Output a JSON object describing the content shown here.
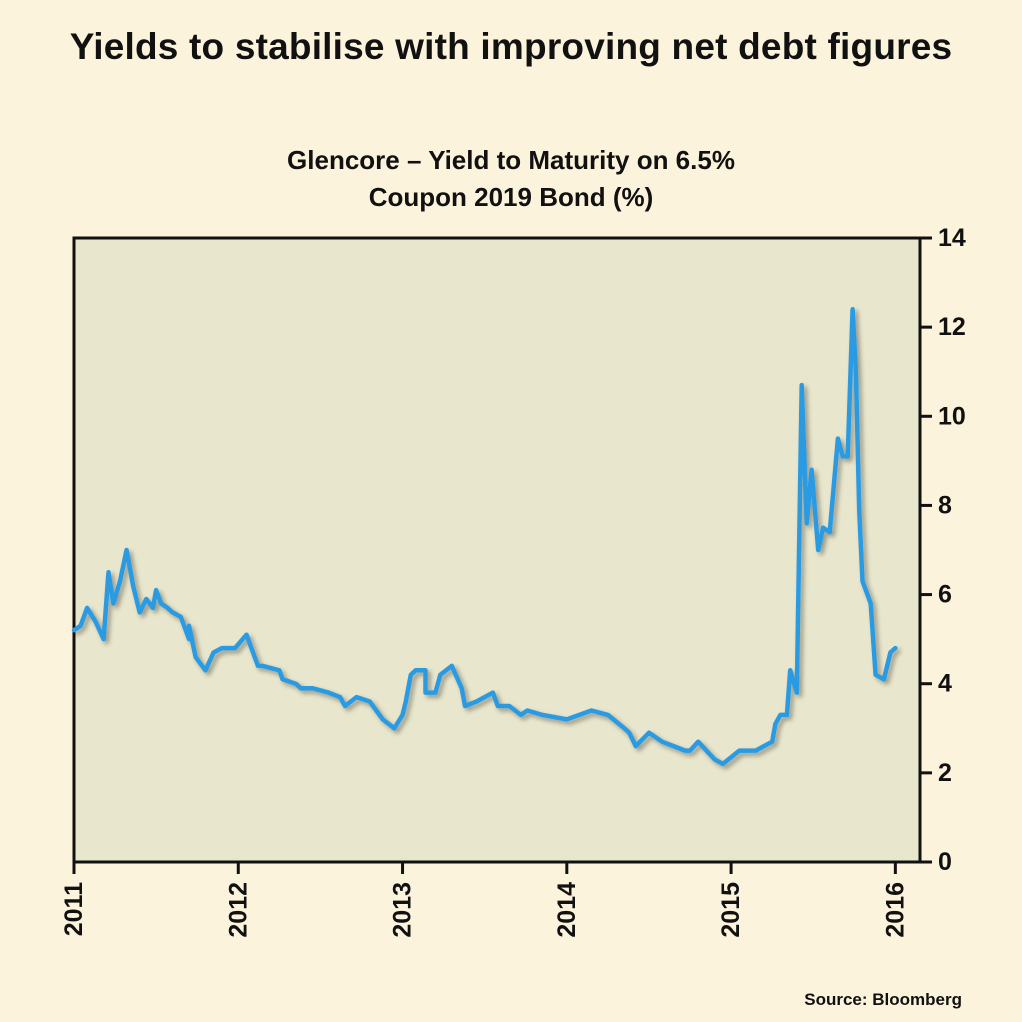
{
  "headline": "Yields to stabilise with improving net debt figures",
  "source": "Source: Bloomberg",
  "colors": {
    "background": "#fbf3dc",
    "plot_area": "#e8e6cc",
    "line": "#2b9be2",
    "axis": "#111111"
  },
  "chart_data": {
    "type": "line",
    "title_lines": [
      "Glencore – Yield to Maturity on 6.5%",
      "Coupon 2019 Bond (%)"
    ],
    "xlabel": "",
    "ylabel": "",
    "xlim": [
      2011,
      2016.15
    ],
    "ylim": [
      0,
      14
    ],
    "y_axis_side": "right",
    "grid": false,
    "x_ticks": [
      2011,
      2012,
      2013,
      2014,
      2015,
      2016
    ],
    "x_tick_labels": [
      "2011",
      "2012",
      "2013",
      "2014",
      "2015",
      "2016"
    ],
    "y_ticks": [
      0,
      2,
      4,
      6,
      8,
      10,
      12,
      14
    ],
    "y_tick_labels": [
      "0",
      "2",
      "4",
      "6",
      "8",
      "10",
      "12",
      "14"
    ],
    "series": [
      {
        "x": [
          2011.0,
          2011.04,
          2011.08,
          2011.13,
          2011.18,
          2011.21,
          2011.24,
          2011.28,
          2011.32,
          2011.36,
          2011.4,
          2011.44,
          2011.48,
          2011.5,
          2011.53,
          2011.57,
          2011.6,
          2011.65,
          2011.7,
          2011.7,
          2011.74,
          2011.8,
          2011.85,
          2011.9,
          2011.98,
          2012.05,
          2012.08,
          2012.12,
          2012.15,
          2012.25,
          2012.27,
          2012.35,
          2012.38,
          2012.45,
          2012.55,
          2012.62,
          2012.65,
          2012.72,
          2012.8,
          2012.88,
          2012.95,
          2013.0,
          2013.02,
          2013.05,
          2013.08,
          2013.14,
          2013.14,
          2013.2,
          2013.23,
          2013.3,
          2013.36,
          2013.38,
          2013.45,
          2013.55,
          2013.58,
          2013.65,
          2013.72,
          2013.76,
          2013.85,
          2014.0,
          2014.15,
          2014.25,
          2014.35,
          2014.38,
          2014.42,
          2014.5,
          2014.58,
          2014.65,
          2014.72,
          2014.75,
          2014.8,
          2014.85,
          2014.9,
          2014.95,
          2015.05,
          2015.15,
          2015.2,
          2015.25,
          2015.27,
          2015.3,
          2015.34,
          2015.36,
          2015.4,
          2015.43,
          2015.46,
          2015.49,
          2015.53,
          2015.56,
          2015.6,
          2015.65,
          2015.68,
          2015.71,
          2015.74,
          2015.76,
          2015.78,
          2015.8,
          2015.85,
          2015.88,
          2015.93,
          2015.97,
          2016.0
        ],
        "y": [
          5.2,
          5.3,
          5.7,
          5.4,
          5.0,
          6.5,
          5.8,
          6.3,
          7.0,
          6.2,
          5.6,
          5.9,
          5.7,
          6.1,
          5.8,
          5.7,
          5.6,
          5.5,
          5.0,
          5.3,
          4.6,
          4.3,
          4.7,
          4.8,
          4.8,
          5.1,
          4.8,
          4.4,
          4.4,
          4.3,
          4.1,
          4.0,
          3.9,
          3.9,
          3.8,
          3.7,
          3.5,
          3.7,
          3.6,
          3.2,
          3.0,
          3.3,
          3.6,
          4.2,
          4.3,
          4.3,
          3.8,
          3.8,
          4.2,
          4.4,
          3.9,
          3.5,
          3.6,
          3.8,
          3.5,
          3.5,
          3.3,
          3.4,
          3.3,
          3.2,
          3.4,
          3.3,
          3.0,
          2.9,
          2.6,
          2.9,
          2.7,
          2.6,
          2.5,
          2.5,
          2.7,
          2.5,
          2.3,
          2.2,
          2.5,
          2.5,
          2.6,
          2.7,
          3.1,
          3.3,
          3.3,
          4.3,
          3.8,
          10.7,
          7.6,
          8.8,
          7.0,
          7.5,
          7.4,
          9.5,
          9.1,
          9.1,
          12.4,
          11.0,
          7.9,
          6.3,
          5.8,
          4.2,
          4.1,
          4.7,
          4.8
        ]
      }
    ]
  }
}
